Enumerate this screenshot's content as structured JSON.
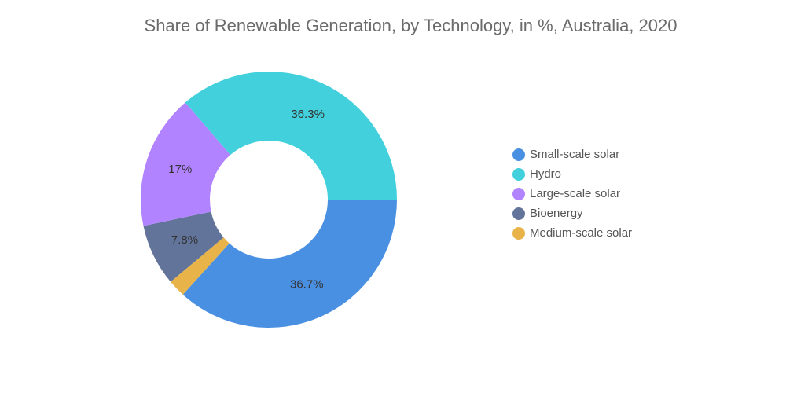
{
  "chart_data": {
    "type": "pie",
    "title": "Share of Renewable Generation, by Technology, in %, Australia, 2020",
    "donut": true,
    "legend_position": "right",
    "slices": [
      {
        "name": "Small-scale solar",
        "value": 36.7,
        "label": "36.7%",
        "color": "#4a90e2"
      },
      {
        "name": "Medium-scale solar",
        "value": 2.2,
        "label": "",
        "color": "#e8b44a"
      },
      {
        "name": "Bioenergy",
        "value": 7.8,
        "label": "7.8%",
        "color": "#62749a"
      },
      {
        "name": "Large-scale solar",
        "value": 17.0,
        "label": "17%",
        "color": "#b283ff"
      },
      {
        "name": "Hydro",
        "value": 36.3,
        "label": "36.3%",
        "color": "#42d1dc"
      }
    ],
    "legend": [
      {
        "name": "Small-scale solar",
        "color": "#4a90e2"
      },
      {
        "name": "Hydro",
        "color": "#42d1dc"
      },
      {
        "name": "Large-scale solar",
        "color": "#b283ff"
      },
      {
        "name": "Bioenergy",
        "color": "#62749a"
      },
      {
        "name": "Medium-scale solar",
        "color": "#e8b44a"
      }
    ]
  }
}
